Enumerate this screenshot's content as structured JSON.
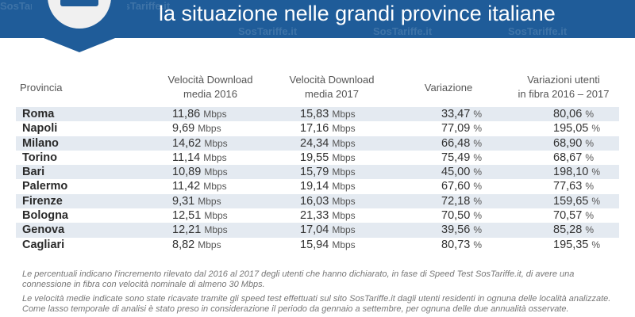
{
  "header": {
    "title": "la situazione nelle grandi province italiane",
    "watermark": "SosTariffe.it"
  },
  "colors": {
    "banner": "#1f5c99",
    "row_shade": "#e4eaf1"
  },
  "table": {
    "headers": {
      "provincia": "Provincia",
      "dl2016_l1": "Velocità Download",
      "dl2016_l2": "media 2016",
      "dl2017_l1": "Velocità Download",
      "dl2017_l2": "media 2017",
      "variazione": "Variazione",
      "fibra_l1": "Variazioni utenti",
      "fibra_l2": "in fibra 2016 – 2017"
    },
    "units": {
      "speed": "Mbps",
      "pct": "%"
    },
    "rows": [
      {
        "provincia": "Roma",
        "dl2016": "11,86",
        "dl2017": "15,83",
        "variazione": "33,47",
        "fibra": "80,06"
      },
      {
        "provincia": "Napoli",
        "dl2016": "9,69",
        "dl2017": "17,16",
        "variazione": "77,09",
        "fibra": "195,05"
      },
      {
        "provincia": "Milano",
        "dl2016": "14,62",
        "dl2017": "24,34",
        "variazione": "66,48",
        "fibra": "68,90"
      },
      {
        "provincia": "Torino",
        "dl2016": "11,14",
        "dl2017": "19,55",
        "variazione": "75,49",
        "fibra": "68,67"
      },
      {
        "provincia": "Bari",
        "dl2016": "10,89",
        "dl2017": "15,79",
        "variazione": "45,00",
        "fibra": "198,10"
      },
      {
        "provincia": "Palermo",
        "dl2016": "11,42",
        "dl2017": "19,14",
        "variazione": "67,60",
        "fibra": "77,63"
      },
      {
        "provincia": "Firenze",
        "dl2016": "9,31",
        "dl2017": "16,03",
        "variazione": "72,18",
        "fibra": "159,65"
      },
      {
        "provincia": "Bologna",
        "dl2016": "12,51",
        "dl2017": "21,33",
        "variazione": "70,50",
        "fibra": "70,57"
      },
      {
        "provincia": "Genova",
        "dl2016": "12,21",
        "dl2017": "17,04",
        "variazione": "39,56",
        "fibra": "85,28"
      },
      {
        "provincia": "Cagliari",
        "dl2016": "8,82",
        "dl2017": "15,94",
        "variazione": "80,73",
        "fibra": "195,35"
      }
    ]
  },
  "notes": {
    "note1": "Le percentuali indicano l'incremento rilevato dal 2016 al 2017 degli utenti che hanno dichiarato, in fase di Speed Test SosTariffe.it, di avere una connessione in fibra con velocità nominale di almeno 30 Mbps.",
    "note2": "Le velocità medie indicate sono state ricavate tramite gli speed test effettuati sul sito SosTariffe.it dagli utenti residenti in ognuna delle località analizzate. Come lasso temporale di analisi è stato preso in considerazione il periodo da gennaio a settembre, per ognuna delle due annualità osservate."
  }
}
